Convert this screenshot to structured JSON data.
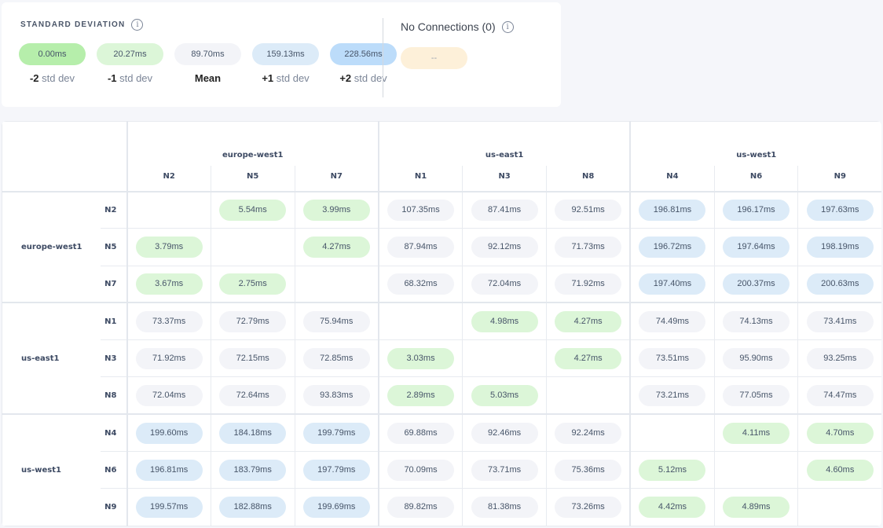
{
  "legend": {
    "title": "STANDARD DEVIATION",
    "info_icon": "info-icon",
    "items": [
      {
        "value": "0.00ms",
        "prefix": "-2",
        "label": "std dev",
        "color": "#b6eeab"
      },
      {
        "value": "20.27ms",
        "prefix": "-1",
        "label": "std dev",
        "color": "#dcf6d8"
      },
      {
        "value": "89.70ms",
        "prefix": "Mean",
        "label": "",
        "color": "#f3f4f8"
      },
      {
        "value": "159.13ms",
        "prefix": "+1",
        "label": "std dev",
        "color": "#dcebf8"
      },
      {
        "value": "228.56ms",
        "prefix": "+2",
        "label": "std dev",
        "color": "#bcdcfa"
      }
    ],
    "no_connections": {
      "title": "No Connections (0)",
      "value": "--",
      "color": "#fdf0d9"
    }
  },
  "matrix": {
    "regions": [
      {
        "name": "europe-west1",
        "nodes": [
          "N2",
          "N5",
          "N7"
        ]
      },
      {
        "name": "us-east1",
        "nodes": [
          "N1",
          "N3",
          "N8"
        ]
      },
      {
        "name": "us-west1",
        "nodes": [
          "N4",
          "N6",
          "N9"
        ]
      }
    ],
    "rows": [
      [
        "",
        "5.54ms",
        "3.99ms",
        "107.35ms",
        "87.41ms",
        "92.51ms",
        "196.81ms",
        "196.17ms",
        "197.63ms"
      ],
      [
        "3.79ms",
        "",
        "4.27ms",
        "87.94ms",
        "92.12ms",
        "71.73ms",
        "196.72ms",
        "197.64ms",
        "198.19ms"
      ],
      [
        "3.67ms",
        "2.75ms",
        "",
        "68.32ms",
        "72.04ms",
        "71.92ms",
        "197.40ms",
        "200.37ms",
        "200.63ms"
      ],
      [
        "73.37ms",
        "72.79ms",
        "75.94ms",
        "",
        "4.98ms",
        "4.27ms",
        "74.49ms",
        "74.13ms",
        "73.41ms"
      ],
      [
        "71.92ms",
        "72.15ms",
        "72.85ms",
        "3.03ms",
        "",
        "4.27ms",
        "73.51ms",
        "95.90ms",
        "93.25ms"
      ],
      [
        "72.04ms",
        "72.64ms",
        "93.83ms",
        "2.89ms",
        "5.03ms",
        "",
        "73.21ms",
        "77.05ms",
        "74.47ms"
      ],
      [
        "199.60ms",
        "184.18ms",
        "199.79ms",
        "69.88ms",
        "92.46ms",
        "92.24ms",
        "",
        "4.11ms",
        "4.70ms"
      ],
      [
        "196.81ms",
        "183.79ms",
        "197.79ms",
        "70.09ms",
        "73.71ms",
        "75.36ms",
        "5.12ms",
        "",
        "4.60ms"
      ],
      [
        "199.57ms",
        "182.88ms",
        "199.69ms",
        "89.82ms",
        "81.38ms",
        "73.26ms",
        "4.42ms",
        "4.89ms",
        ""
      ]
    ]
  }
}
